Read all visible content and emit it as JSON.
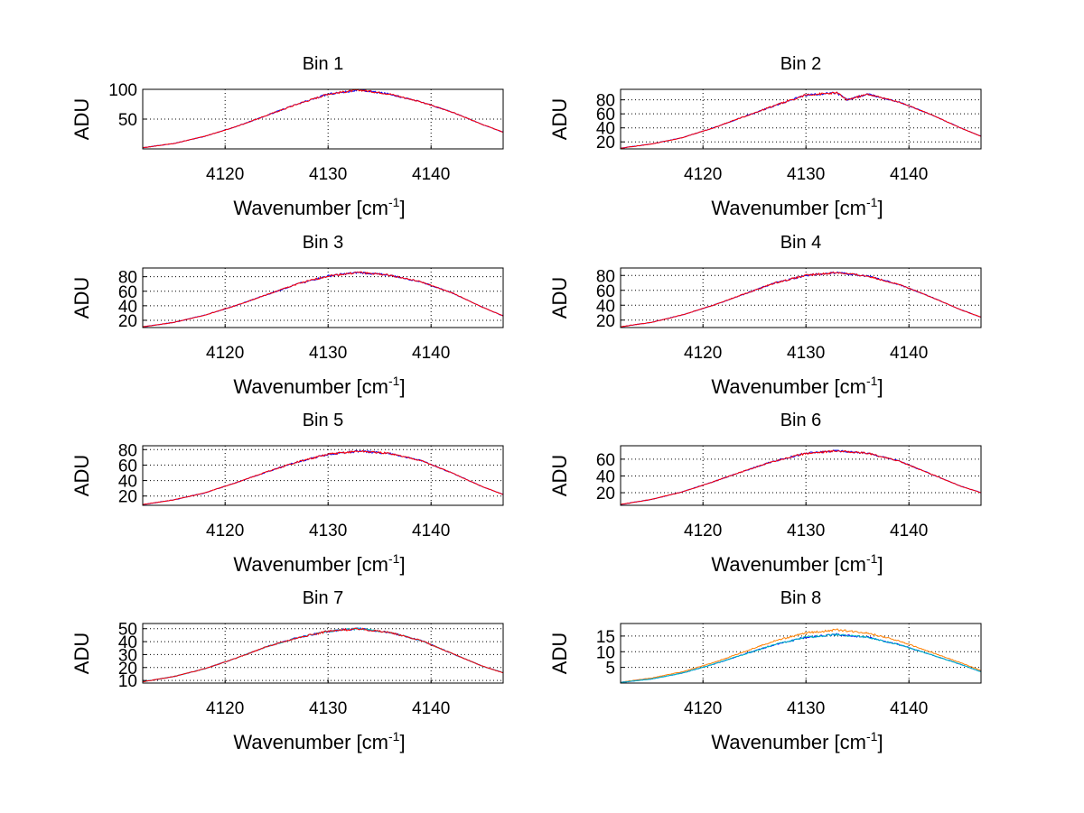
{
  "figure": {
    "panels": [
      {
        "title": "Bin 1",
        "ylabel": "ADU",
        "xlabel": "Wavenumber [cm",
        "xlabel_sup": "-1",
        "xlabel_end": "]",
        "x_ticks": [
          "4120",
          "4130",
          "4140"
        ],
        "y_ticks": [
          "50",
          "100"
        ]
      },
      {
        "title": "Bin 2",
        "ylabel": "ADU",
        "xlabel": "Wavenumber [cm",
        "xlabel_sup": "-1",
        "xlabel_end": "]",
        "x_ticks": [
          "4120",
          "4130",
          "4140"
        ],
        "y_ticks": [
          "20",
          "40",
          "60",
          "80"
        ]
      },
      {
        "title": "Bin 3",
        "ylabel": "ADU",
        "xlabel": "Wavenumber [cm",
        "xlabel_sup": "-1",
        "xlabel_end": "]",
        "x_ticks": [
          "4120",
          "4130",
          "4140"
        ],
        "y_ticks": [
          "20",
          "40",
          "60",
          "80"
        ]
      },
      {
        "title": "Bin 4",
        "ylabel": "ADU",
        "xlabel": "Wavenumber [cm",
        "xlabel_sup": "-1",
        "xlabel_end": "]",
        "x_ticks": [
          "4120",
          "4130",
          "4140"
        ],
        "y_ticks": [
          "20",
          "40",
          "60",
          "80"
        ]
      },
      {
        "title": "Bin 5",
        "ylabel": "ADU",
        "xlabel": "Wavenumber [cm",
        "xlabel_sup": "-1",
        "xlabel_end": "]",
        "x_ticks": [
          "4120",
          "4130",
          "4140"
        ],
        "y_ticks": [
          "20",
          "40",
          "60",
          "80"
        ]
      },
      {
        "title": "Bin 6",
        "ylabel": "ADU",
        "xlabel": "Wavenumber [cm",
        "xlabel_sup": "-1",
        "xlabel_end": "]",
        "x_ticks": [
          "4120",
          "4130",
          "4140"
        ],
        "y_ticks": [
          "20",
          "40",
          "60"
        ]
      },
      {
        "title": "Bin 7",
        "ylabel": "ADU",
        "xlabel": "Wavenumber [cm",
        "xlabel_sup": "-1",
        "xlabel_end": "]",
        "x_ticks": [
          "4120",
          "4130",
          "4140"
        ],
        "y_ticks": [
          "10",
          "20",
          "30",
          "40",
          "50"
        ]
      },
      {
        "title": "Bin 8",
        "ylabel": "ADU",
        "xlabel": "Wavenumber [cm",
        "xlabel_sup": "-1",
        "xlabel_end": "]",
        "x_ticks": [
          "4120",
          "4130",
          "4140"
        ],
        "y_ticks": [
          "5",
          "10",
          "15"
        ]
      }
    ]
  },
  "chart_data": [
    {
      "type": "line",
      "title": "Bin 1",
      "xlabel": "Wavenumber [cm-1]",
      "ylabel": "ADU",
      "xlim": [
        4112,
        4147
      ],
      "ylim": [
        0,
        100
      ],
      "grid": true,
      "yticks": [
        50,
        100
      ],
      "xticks": [
        4120,
        4130,
        4140
      ],
      "colors": [
        "#0000ff",
        "#ff0000"
      ],
      "x": [
        4112,
        4115,
        4118,
        4121,
        4124,
        4127,
        4130,
        4133,
        4136,
        4139,
        4142,
        4145,
        4147
      ],
      "series": [
        {
          "values": [
            2,
            9,
            21,
            37,
            56,
            75,
            92,
            99,
            92,
            79,
            62,
            41,
            28
          ]
        }
      ]
    },
    {
      "type": "line",
      "title": "Bin 2",
      "xlabel": "Wavenumber [cm-1]",
      "ylabel": "ADU",
      "xlim": [
        4112,
        4147
      ],
      "ylim": [
        10,
        95
      ],
      "grid": true,
      "yticks": [
        20,
        40,
        60,
        80
      ],
      "xticks": [
        4120,
        4130,
        4140
      ],
      "colors": [
        "#0000ff",
        "#ff0000"
      ],
      "x": [
        4112,
        4115,
        4118,
        4121,
        4124,
        4127,
        4130,
        4133,
        4134,
        4136,
        4139,
        4142,
        4145,
        4147
      ],
      "series": [
        {
          "values": [
            11,
            17,
            26,
            40,
            56,
            72,
            87,
            90,
            80,
            88,
            77,
            60,
            40,
            28
          ]
        }
      ]
    },
    {
      "type": "line",
      "title": "Bin 3",
      "xlabel": "Wavenumber [cm-1]",
      "ylabel": "ADU",
      "xlim": [
        4112,
        4147
      ],
      "ylim": [
        10,
        92
      ],
      "grid": true,
      "yticks": [
        20,
        40,
        60,
        80
      ],
      "xticks": [
        4120,
        4130,
        4140
      ],
      "colors": [
        "#0000ff",
        "#ff0000"
      ],
      "x": [
        4112,
        4115,
        4118,
        4121,
        4124,
        4127,
        4130,
        4133,
        4136,
        4139,
        4142,
        4145,
        4147
      ],
      "series": [
        {
          "values": [
            11,
            17,
            27,
            40,
            55,
            70,
            81,
            86,
            82,
            73,
            58,
            38,
            26
          ]
        }
      ]
    },
    {
      "type": "line",
      "title": "Bin 4",
      "xlabel": "Wavenumber [cm-1]",
      "ylabel": "ADU",
      "xlim": [
        4112,
        4147
      ],
      "ylim": [
        10,
        90
      ],
      "grid": true,
      "yticks": [
        20,
        40,
        60,
        80
      ],
      "xticks": [
        4120,
        4130,
        4140
      ],
      "colors": [
        "#0000ff",
        "#ff0000"
      ],
      "x": [
        4112,
        4115,
        4118,
        4121,
        4124,
        4127,
        4130,
        4133,
        4136,
        4139,
        4142,
        4145,
        4147
      ],
      "series": [
        {
          "values": [
            11,
            17,
            27,
            40,
            55,
            70,
            80,
            84,
            79,
            68,
            52,
            34,
            24
          ]
        }
      ]
    },
    {
      "type": "line",
      "title": "Bin 5",
      "xlabel": "Wavenumber [cm-1]",
      "ylabel": "ADU",
      "xlim": [
        4112,
        4147
      ],
      "ylim": [
        8,
        85
      ],
      "grid": true,
      "yticks": [
        20,
        40,
        60,
        80
      ],
      "xticks": [
        4120,
        4130,
        4140
      ],
      "colors": [
        "#0000ff",
        "#ff0000"
      ],
      "x": [
        4112,
        4115,
        4118,
        4121,
        4124,
        4127,
        4130,
        4133,
        4136,
        4139,
        4142,
        4145,
        4147
      ],
      "series": [
        {
          "values": [
            9,
            15,
            24,
            37,
            51,
            64,
            74,
            78,
            75,
            66,
            50,
            32,
            22
          ]
        }
      ]
    },
    {
      "type": "line",
      "title": "Bin 6",
      "xlabel": "Wavenumber [cm-1]",
      "ylabel": "ADU",
      "xlim": [
        4112,
        4147
      ],
      "ylim": [
        5,
        76
      ],
      "grid": true,
      "yticks": [
        20,
        40,
        60
      ],
      "xticks": [
        4120,
        4130,
        4140
      ],
      "colors": [
        "#0000ff",
        "#ff0000"
      ],
      "x": [
        4112,
        4115,
        4118,
        4121,
        4124,
        4127,
        4130,
        4133,
        4136,
        4139,
        4142,
        4145,
        4147
      ],
      "series": [
        {
          "values": [
            6,
            12,
            21,
            33,
            46,
            58,
            67,
            70,
            67,
            58,
            43,
            28,
            20
          ]
        }
      ]
    },
    {
      "type": "line",
      "title": "Bin 7",
      "xlabel": "Wavenumber [cm-1]",
      "ylabel": "ADU",
      "xlim": [
        4112,
        4147
      ],
      "ylim": [
        8,
        54
      ],
      "grid": true,
      "yticks": [
        10,
        20,
        30,
        40,
        50
      ],
      "xticks": [
        4120,
        4130,
        4140
      ],
      "colors": [
        "#0000ff",
        "#00bfbf",
        "#ff0000"
      ],
      "x": [
        4112,
        4115,
        4118,
        4121,
        4124,
        4127,
        4130,
        4133,
        4136,
        4139,
        4142,
        4145,
        4147
      ],
      "series": [
        {
          "values": [
            9,
            13,
            19,
            27,
            36,
            43,
            48,
            50,
            47,
            41,
            31,
            21,
            16
          ]
        }
      ]
    },
    {
      "type": "line",
      "title": "Bin 8",
      "xlabel": "Wavenumber [cm-1]",
      "ylabel": "ADU",
      "xlim": [
        4112,
        4147
      ],
      "ylim": [
        0,
        19
      ],
      "grid": true,
      "yticks": [
        5,
        10,
        15
      ],
      "xticks": [
        4120,
        4130,
        4140
      ],
      "colors": [
        "#ff7f00",
        "#0000ff",
        "#00bfbf"
      ],
      "x": [
        4112,
        4115,
        4118,
        4121,
        4124,
        4127,
        4130,
        4133,
        4136,
        4139,
        4142,
        4145,
        4147
      ],
      "series": [
        {
          "values": [
            0.3,
            1.6,
            3.6,
            6.5,
            10.0,
            13.5,
            16.0,
            17.0,
            16.0,
            13.5,
            10.0,
            6.5,
            4.0
          ]
        },
        {
          "values": [
            0.2,
            1.3,
            3.2,
            6.0,
            9.2,
            12.3,
            14.6,
            15.5,
            14.6,
            12.3,
            9.2,
            6.0,
            3.6
          ]
        }
      ]
    }
  ]
}
